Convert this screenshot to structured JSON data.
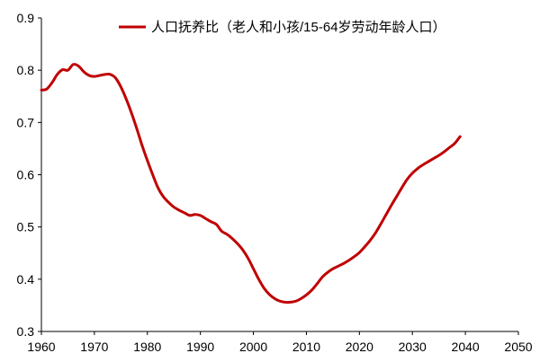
{
  "chart_data": {
    "type": "line",
    "title": "",
    "xlabel": "",
    "ylabel": "",
    "xlim": [
      1960,
      2050
    ],
    "ylim": [
      0.3,
      0.9
    ],
    "x_ticks": [
      "1960",
      "1970",
      "1980",
      "1990",
      "2000",
      "2010",
      "2020",
      "2030",
      "2040",
      "2050"
    ],
    "y_ticks": [
      "0.9",
      "0.8",
      "0.7",
      "0.6",
      "0.5",
      "0.4",
      "0.3"
    ],
    "grid": false,
    "legend_position": "top",
    "series": [
      {
        "name": "人口抚养比（老人和小孩/15-64岁劳动年龄人口）",
        "color": "#c00000",
        "points": [
          [
            1960,
            0.762
          ],
          [
            1961,
            0.764
          ],
          [
            1962,
            0.776
          ],
          [
            1963,
            0.792
          ],
          [
            1964,
            0.801
          ],
          [
            1965,
            0.8
          ],
          [
            1966,
            0.811
          ],
          [
            1967,
            0.808
          ],
          [
            1968,
            0.797
          ],
          [
            1969,
            0.79
          ],
          [
            1970,
            0.788
          ],
          [
            1971,
            0.79
          ],
          [
            1972,
            0.792
          ],
          [
            1973,
            0.792
          ],
          [
            1974,
            0.785
          ],
          [
            1975,
            0.768
          ],
          [
            1976,
            0.745
          ],
          [
            1977,
            0.718
          ],
          [
            1978,
            0.688
          ],
          [
            1979,
            0.656
          ],
          [
            1980,
            0.627
          ],
          [
            1981,
            0.6
          ],
          [
            1982,
            0.575
          ],
          [
            1983,
            0.558
          ],
          [
            1984,
            0.547
          ],
          [
            1985,
            0.538
          ],
          [
            1986,
            0.532
          ],
          [
            1987,
            0.527
          ],
          [
            1988,
            0.522
          ],
          [
            1989,
            0.524
          ],
          [
            1990,
            0.522
          ],
          [
            1991,
            0.516
          ],
          [
            1992,
            0.51
          ],
          [
            1993,
            0.505
          ],
          [
            1994,
            0.492
          ],
          [
            1995,
            0.486
          ],
          [
            1996,
            0.478
          ],
          [
            1997,
            0.468
          ],
          [
            1998,
            0.456
          ],
          [
            1999,
            0.44
          ],
          [
            2000,
            0.42
          ],
          [
            2001,
            0.4
          ],
          [
            2002,
            0.383
          ],
          [
            2003,
            0.371
          ],
          [
            2004,
            0.363
          ],
          [
            2005,
            0.358
          ],
          [
            2006,
            0.356
          ],
          [
            2007,
            0.356
          ],
          [
            2008,
            0.358
          ],
          [
            2009,
            0.363
          ],
          [
            2010,
            0.37
          ],
          [
            2011,
            0.379
          ],
          [
            2012,
            0.391
          ],
          [
            2013,
            0.404
          ],
          [
            2014,
            0.413
          ],
          [
            2015,
            0.42
          ],
          [
            2016,
            0.425
          ],
          [
            2017,
            0.43
          ],
          [
            2018,
            0.436
          ],
          [
            2019,
            0.443
          ],
          [
            2020,
            0.451
          ],
          [
            2021,
            0.462
          ],
          [
            2022,
            0.474
          ],
          [
            2023,
            0.488
          ],
          [
            2024,
            0.505
          ],
          [
            2025,
            0.523
          ],
          [
            2026,
            0.541
          ],
          [
            2027,
            0.558
          ],
          [
            2028,
            0.575
          ],
          [
            2029,
            0.591
          ],
          [
            2030,
            0.603
          ],
          [
            2031,
            0.612
          ],
          [
            2032,
            0.619
          ],
          [
            2033,
            0.625
          ],
          [
            2034,
            0.631
          ],
          [
            2035,
            0.637
          ],
          [
            2036,
            0.644
          ],
          [
            2037,
            0.652
          ],
          [
            2038,
            0.66
          ],
          [
            2039,
            0.673
          ]
        ]
      }
    ]
  }
}
